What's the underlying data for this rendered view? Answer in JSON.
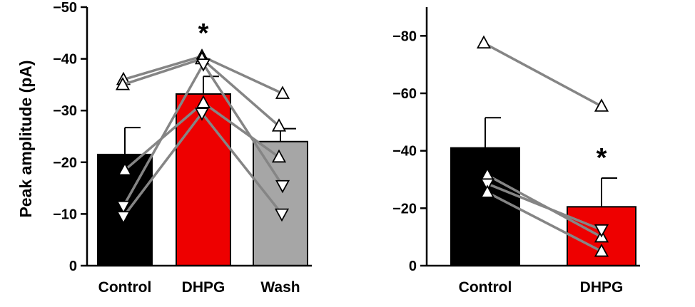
{
  "chart_data": [
    {
      "type": "bar",
      "ylabel": "Peak amplitude (pA)",
      "ylim": [
        0,
        -50
      ],
      "yticks": [
        "0",
        "−10",
        "−20",
        "−30",
        "−40",
        "−50"
      ],
      "ytick_values": [
        0,
        -10,
        -20,
        -30,
        -40,
        -50
      ],
      "categories": [
        "Control",
        "DHPG",
        "Wash"
      ],
      "values": [
        -21.5,
        -33.2,
        -24
      ],
      "errors": [
        5.2,
        3.4,
        2.5
      ],
      "bar_colors": [
        "#000000",
        "#ee0000",
        "#a6a6a6"
      ],
      "significance": [
        "",
        "*",
        ""
      ],
      "individual_cells": [
        {
          "marker": "up",
          "values": [
            -36,
            -40.5,
            -33.3
          ]
        },
        {
          "marker": "up",
          "values": [
            -35,
            -40,
            -27
          ]
        },
        {
          "marker": "up",
          "values": [
            -18.5,
            -31.5,
            -21
          ]
        },
        {
          "marker": "down",
          "values": [
            -11.5,
            -39,
            -15.5
          ]
        },
        {
          "marker": "down",
          "values": [
            -9.5,
            -29.5,
            -10
          ]
        }
      ]
    },
    {
      "type": "bar",
      "ylabel": "",
      "ylim": [
        0,
        -90
      ],
      "yticks": [
        "0",
        "−20",
        "−40",
        "−60",
        "−80"
      ],
      "ytick_values": [
        0,
        -20,
        -40,
        -60,
        -80
      ],
      "categories": [
        "Control",
        "DHPG"
      ],
      "values": [
        -41,
        -20.5
      ],
      "errors": [
        10.5,
        10
      ],
      "bar_colors": [
        "#000000",
        "#ee0000"
      ],
      "significance": [
        "",
        "*"
      ],
      "individual_cells": [
        {
          "marker": "up",
          "values": [
            -77.5,
            -55.5
          ]
        },
        {
          "marker": "up",
          "values": [
            -31.5,
            -10
          ]
        },
        {
          "marker": "down",
          "values": [
            -28.5,
            -12.5
          ]
        },
        {
          "marker": "up",
          "values": [
            -25.5,
            -5
          ]
        }
      ]
    }
  ],
  "style": {
    "line_color": "#858585",
    "marker_edge": "#000000",
    "marker_fill": "#ffffff"
  }
}
